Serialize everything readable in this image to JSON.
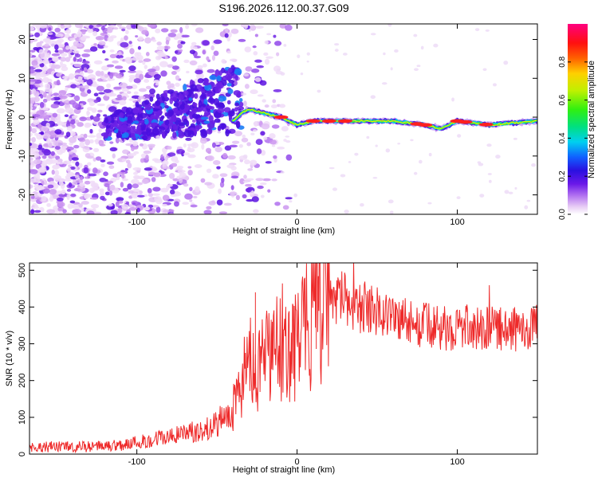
{
  "title": "S196.2026.112.00.37.G09",
  "chart_data": [
    {
      "type": "heatmap",
      "xlabel": "Height of straight line (km)",
      "ylabel": "Frequency (Hz)",
      "xlim": [
        -167,
        150
      ],
      "ylim": [
        -25,
        24
      ],
      "xticks": [
        -100,
        0,
        100
      ],
      "xtick_labels": [
        "-100",
        "0",
        "100"
      ],
      "yticks": [
        -20,
        -10,
        0,
        10,
        20
      ],
      "ytick_labels": [
        "-20",
        "-10",
        "0",
        "10",
        "20"
      ],
      "colorbar": {
        "label": "Normalized spectral amplitude",
        "range": [
          0,
          1
        ],
        "ticks": [
          0.0,
          0.2,
          0.4,
          0.6,
          0.8
        ],
        "tick_labels": [
          "0.0",
          "0.2",
          "0.4",
          "0.6",
          "0.8"
        ]
      },
      "ridge": {
        "description": "Strong tonal line near 0 Hz from about -35 km to 150 km",
        "x": [
          -40,
          -35,
          -30,
          -20,
          -10,
          0,
          10,
          30,
          60,
          80,
          90,
          100,
          120,
          150
        ],
        "freq": [
          -1,
          1,
          2,
          1,
          0,
          -2,
          -1,
          -1,
          -1,
          -2,
          -3,
          -1,
          -2,
          -1
        ]
      },
      "scatter_region": {
        "description": "Diffuse purple low-amplitude speckle, denser at low heights",
        "x_range": [
          -167,
          -35
        ]
      }
    },
    {
      "type": "line",
      "xlabel": "Height of straight line (km)",
      "ylabel": "SNR (10 * v/v)",
      "xlim": [
        -167,
        150
      ],
      "ylim": [
        0,
        520
      ],
      "xticks": [
        -100,
        0,
        100
      ],
      "xtick_labels": [
        "-100",
        "0",
        "100"
      ],
      "yticks": [
        0,
        100,
        200,
        300,
        400,
        500
      ],
      "ytick_labels": [
        "0",
        "100",
        "200",
        "300",
        "400",
        "500"
      ],
      "series": [
        {
          "name": "SNR",
          "color": "#ee2a2a",
          "x": [
            -167,
            -150,
            -130,
            -110,
            -90,
            -70,
            -55,
            -45,
            -38,
            -33,
            -30,
            -25,
            -20,
            -15,
            -10,
            -5,
            0,
            5,
            10,
            15,
            20,
            25,
            30,
            40,
            50,
            60,
            70,
            80,
            90,
            100,
            110,
            120,
            130,
            140,
            150
          ],
          "y": [
            20,
            20,
            20,
            25,
            40,
            55,
            70,
            100,
            140,
            220,
            250,
            200,
            260,
            280,
            300,
            300,
            310,
            330,
            380,
            420,
            420,
            425,
            420,
            400,
            390,
            375,
            360,
            350,
            340,
            345,
            345,
            340,
            340,
            340,
            345
          ]
        }
      ],
      "annotations": [
        {
          "x": -26,
          "y": 440,
          "note": "spike"
        },
        {
          "x": 12,
          "y": 520,
          "note": "spike"
        }
      ]
    }
  ]
}
